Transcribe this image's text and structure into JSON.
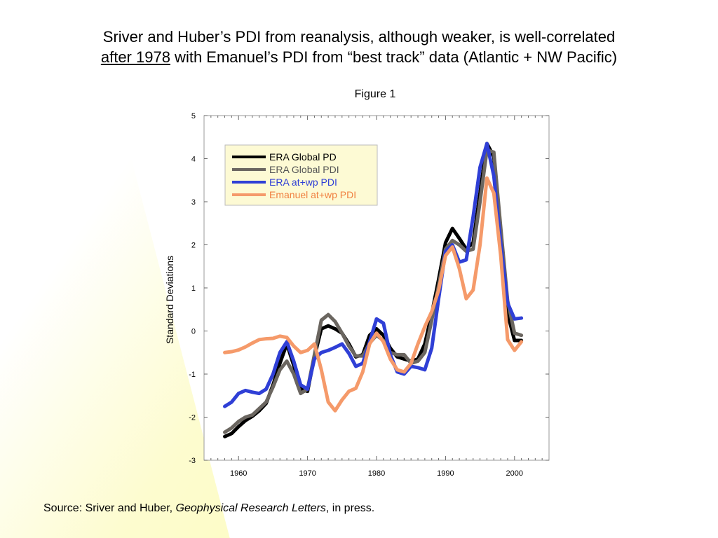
{
  "title": {
    "line1": "Sriver and Huber’s PDI from reanalysis, although weaker, is well-correlated",
    "line2_underlined": "after 1978",
    "line2_rest": " with Emanuel’s PDI from “best track” data (Atlantic + NW Pacific)"
  },
  "figure_label": "Figure 1",
  "source": {
    "prefix": "Source:  Sriver and Huber, ",
    "journal": "Geophysical Research Letters",
    "suffix": ", in press."
  },
  "chart_data": {
    "type": "line",
    "title": "",
    "xlabel": "",
    "ylabel": "Standard Deviations",
    "xlim": [
      1955,
      2005
    ],
    "ylim": [
      -3,
      5
    ],
    "xticks": [
      1960,
      1970,
      1980,
      1990,
      2000
    ],
    "yticks": [
      -3,
      -2,
      -1,
      0,
      1,
      2,
      3,
      4,
      5
    ],
    "grid": false,
    "legend": "top-left",
    "x": [
      1958,
      1959,
      1960,
      1961,
      1962,
      1963,
      1964,
      1965,
      1966,
      1967,
      1968,
      1969,
      1970,
      1971,
      1972,
      1973,
      1974,
      1975,
      1976,
      1977,
      1978,
      1979,
      1980,
      1981,
      1982,
      1983,
      1984,
      1985,
      1986,
      1987,
      1988,
      1989,
      1990,
      1991,
      1992,
      1993,
      1994,
      1995,
      1996,
      1997,
      1998,
      1999,
      2000,
      2001
    ],
    "series": [
      {
        "name": "ERA Global PD",
        "color": "#000000",
        "values": [
          -2.45,
          -2.38,
          -2.22,
          -2.08,
          -1.98,
          -1.85,
          -1.68,
          -1.25,
          -0.75,
          -0.3,
          -0.8,
          -1.35,
          -1.4,
          -0.6,
          0.05,
          0.12,
          0.05,
          -0.05,
          -0.3,
          -0.6,
          -0.55,
          -0.1,
          0.05,
          -0.1,
          -0.4,
          -0.6,
          -0.65,
          -0.7,
          -0.65,
          -0.3,
          0.4,
          1.2,
          2.05,
          2.38,
          2.15,
          1.9,
          2.05,
          3.2,
          4.35,
          4.05,
          2.2,
          0.4,
          -0.22,
          -0.22
        ]
      },
      {
        "name": "ERA Global PDI",
        "color": "#6b6660",
        "values": [
          -2.35,
          -2.25,
          -2.1,
          -2.0,
          -1.95,
          -1.8,
          -1.65,
          -1.3,
          -0.9,
          -0.7,
          -1.0,
          -1.45,
          -1.35,
          -0.55,
          0.25,
          0.38,
          0.22,
          -0.05,
          -0.35,
          -0.58,
          -0.58,
          -0.28,
          -0.1,
          -0.22,
          -0.5,
          -0.55,
          -0.55,
          -0.75,
          -0.7,
          -0.5,
          0.25,
          1.05,
          1.9,
          2.1,
          2.0,
          1.85,
          1.9,
          3.0,
          4.2,
          4.15,
          2.4,
          0.7,
          -0.05,
          -0.1
        ]
      },
      {
        "name": "ERA at+wp PDI",
        "color": "#2f3fd6",
        "values": [
          -1.75,
          -1.65,
          -1.45,
          -1.38,
          -1.42,
          -1.45,
          -1.35,
          -1.0,
          -0.5,
          -0.25,
          -0.7,
          -1.25,
          -1.35,
          -0.65,
          -0.5,
          -0.45,
          -0.38,
          -0.3,
          -0.52,
          -0.82,
          -0.75,
          -0.25,
          0.28,
          0.18,
          -0.55,
          -0.95,
          -1.0,
          -0.82,
          -0.85,
          -0.9,
          -0.4,
          0.75,
          1.85,
          2.0,
          1.6,
          1.65,
          2.65,
          3.8,
          4.35,
          3.6,
          2.05,
          0.65,
          0.28,
          0.3
        ]
      },
      {
        "name": "Emanuel at+wp PDI",
        "color": "#f59a6a",
        "values": [
          -0.5,
          -0.48,
          -0.44,
          -0.37,
          -0.28,
          -0.2,
          -0.18,
          -0.17,
          -0.12,
          -0.15,
          -0.35,
          -0.5,
          -0.45,
          -0.3,
          -0.9,
          -1.65,
          -1.85,
          -1.6,
          -1.4,
          -1.33,
          -0.95,
          -0.3,
          -0.05,
          -0.25,
          -0.65,
          -0.9,
          -0.95,
          -0.75,
          -0.3,
          0.1,
          0.45,
          0.95,
          1.75,
          1.95,
          1.45,
          0.75,
          0.95,
          2.0,
          3.55,
          3.2,
          1.75,
          -0.2,
          -0.45,
          -0.25
        ]
      }
    ]
  }
}
